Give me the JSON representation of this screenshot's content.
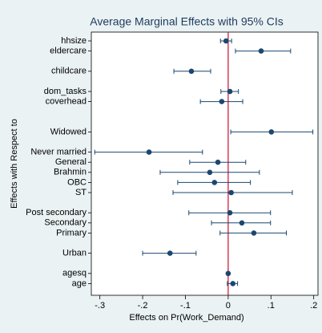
{
  "chart_data": {
    "type": "coefplot",
    "title": "Average Marginal Effects with 95% CIs",
    "xlabel": "Effects on Pr(Work_Demand)",
    "ylabel": "Effects with Respect to",
    "categories": [
      "hhsize",
      "eldercare",
      null,
      "childcare",
      null,
      "dom_tasks",
      "coverhead",
      null,
      null,
      "Widowed",
      null,
      "Never married",
      "General",
      "Brahmin",
      "OBC",
      "ST",
      null,
      "Post secondary",
      "Secondary",
      "Primary",
      null,
      "Urban",
      null,
      "agesq",
      "age"
    ],
    "values": [
      -0.005,
      0.077,
      null,
      -0.086,
      null,
      0.004,
      -0.015,
      null,
      null,
      0.101,
      null,
      -0.185,
      -0.024,
      -0.043,
      -0.032,
      0.007,
      null,
      0.004,
      0.032,
      0.06,
      null,
      -0.136,
      null,
      0.0,
      0.011
    ],
    "lower": [
      -0.018,
      0.017,
      null,
      -0.127,
      null,
      -0.017,
      -0.065,
      null,
      null,
      0.006,
      null,
      -0.312,
      -0.09,
      -0.159,
      -0.118,
      -0.129,
      null,
      -0.092,
      -0.039,
      -0.019,
      null,
      -0.2,
      null,
      -0.001,
      -0.002
    ],
    "upper": [
      0.008,
      0.146,
      null,
      -0.041,
      null,
      0.024,
      0.034,
      null,
      null,
      0.198,
      null,
      -0.06,
      0.041,
      0.073,
      0.052,
      0.15,
      null,
      0.099,
      0.099,
      0.136,
      null,
      -0.075,
      null,
      0.001,
      0.022
    ],
    "color": "#1a476f",
    "xline": 0,
    "xline_color": "#c8102e",
    "xlim": [
      -0.32,
      0.21
    ],
    "xticks": [
      {
        "value": -0.3,
        "label": "-.3"
      },
      {
        "value": -0.2,
        "label": "-.2"
      },
      {
        "value": -0.1,
        "label": "-.1"
      },
      0,
      {
        "value": 0.1,
        "label": ".1"
      },
      {
        "value": 0.2,
        "label": ".2"
      }
    ]
  }
}
